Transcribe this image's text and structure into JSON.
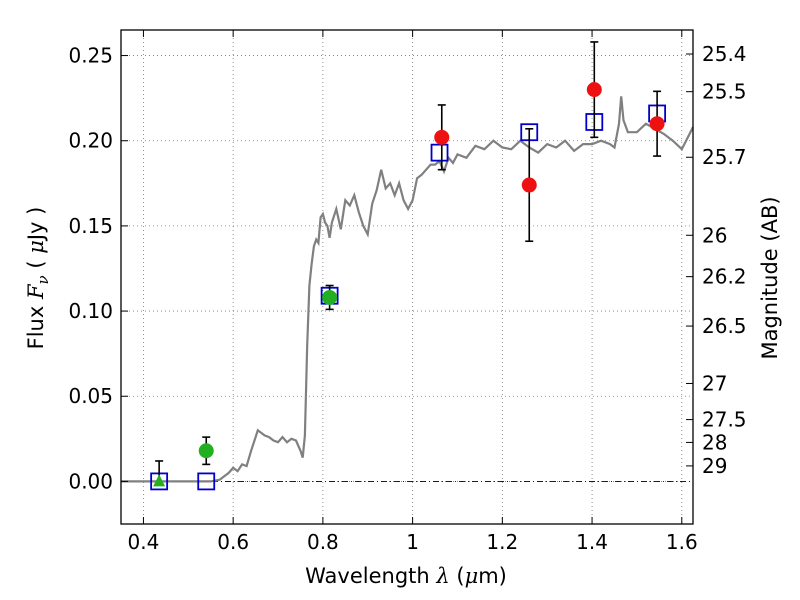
{
  "chart_data": {
    "type": "scatter",
    "xlabel": {
      "prefix": "Wavelength  ",
      "symbol": "λ",
      "suffix": " (",
      "unit_symbol": "μ",
      "unit": "m)"
    },
    "ylabel": {
      "prefix": "Flux  ",
      "symbol": "F",
      "subscript": "ν",
      "middle": "  ( ",
      "unit_symbol": "μ",
      "unit": "Jy )"
    },
    "y2label": "Magnitude (AB)",
    "xlim": [
      0.35,
      1.625
    ],
    "ylim": [
      -0.025,
      0.265
    ],
    "grid": true,
    "x_ticks": [
      {
        "value": 0.4,
        "label": "0.4"
      },
      {
        "value": 0.6,
        "label": "0.6"
      },
      {
        "value": 0.8,
        "label": "0.8"
      },
      {
        "value": 1.0,
        "label": "1"
      },
      {
        "value": 1.2,
        "label": "1.2"
      },
      {
        "value": 1.4,
        "label": "1.4"
      },
      {
        "value": 1.6,
        "label": "1.6"
      }
    ],
    "y_ticks": [
      {
        "value": 0.0,
        "label": "0.00"
      },
      {
        "value": 0.05,
        "label": "0.05"
      },
      {
        "value": 0.1,
        "label": "0.10"
      },
      {
        "value": 0.15,
        "label": "0.15"
      },
      {
        "value": 0.2,
        "label": "0.20"
      },
      {
        "value": 0.25,
        "label": "0.25"
      }
    ],
    "magnitude_ticks": [
      {
        "label": "25.4",
        "flux": 0.2509
      },
      {
        "label": "25.5",
        "flux": 0.2288
      },
      {
        "label": "25.7",
        "flux": 0.1903
      },
      {
        "label": "26",
        "flux": 0.1445
      },
      {
        "label": "26.2",
        "flux": 0.1202
      },
      {
        "label": "26.5",
        "flux": 0.0912
      },
      {
        "label": "27",
        "flux": 0.0575
      },
      {
        "label": "27.5",
        "flux": 0.0363
      },
      {
        "label": "28",
        "flux": 0.0229
      },
      {
        "label": "29",
        "flux": 0.0091
      }
    ],
    "series": [
      {
        "kind": "template_spectrum",
        "color": "#808080",
        "x": [
          0.35,
          0.5,
          0.55,
          0.57,
          0.58,
          0.59,
          0.6,
          0.61,
          0.62,
          0.63,
          0.64,
          0.65,
          0.655,
          0.66,
          0.67,
          0.68,
          0.69,
          0.7,
          0.71,
          0.72,
          0.73,
          0.74,
          0.75,
          0.755,
          0.76,
          0.765,
          0.77,
          0.775,
          0.78,
          0.785,
          0.79,
          0.795,
          0.8,
          0.805,
          0.81,
          0.815,
          0.82,
          0.83,
          0.84,
          0.85,
          0.86,
          0.87,
          0.88,
          0.89,
          0.9,
          0.91,
          0.92,
          0.93,
          0.94,
          0.95,
          0.96,
          0.97,
          0.98,
          0.99,
          1.0,
          1.01,
          1.02,
          1.03,
          1.04,
          1.05,
          1.06,
          1.07,
          1.08,
          1.09,
          1.1,
          1.12,
          1.14,
          1.16,
          1.18,
          1.2,
          1.22,
          1.24,
          1.26,
          1.28,
          1.3,
          1.32,
          1.34,
          1.36,
          1.38,
          1.4,
          1.42,
          1.44,
          1.45,
          1.46,
          1.465,
          1.47,
          1.48,
          1.5,
          1.52,
          1.54,
          1.56,
          1.58,
          1.6,
          1.625
        ],
        "y": [
          0.0,
          0.0,
          0.0,
          0.001,
          0.003,
          0.005,
          0.008,
          0.006,
          0.01,
          0.009,
          0.018,
          0.026,
          0.03,
          0.029,
          0.027,
          0.026,
          0.024,
          0.023,
          0.026,
          0.023,
          0.025,
          0.024,
          0.018,
          0.014,
          0.027,
          0.08,
          0.115,
          0.128,
          0.138,
          0.142,
          0.14,
          0.155,
          0.157,
          0.152,
          0.15,
          0.143,
          0.152,
          0.16,
          0.148,
          0.165,
          0.162,
          0.168,
          0.158,
          0.15,
          0.145,
          0.163,
          0.171,
          0.183,
          0.172,
          0.175,
          0.168,
          0.175,
          0.165,
          0.16,
          0.165,
          0.178,
          0.18,
          0.183,
          0.186,
          0.186,
          0.188,
          0.182,
          0.19,
          0.187,
          0.192,
          0.19,
          0.197,
          0.195,
          0.2,
          0.196,
          0.195,
          0.2,
          0.196,
          0.193,
          0.198,
          0.196,
          0.2,
          0.194,
          0.198,
          0.198,
          0.2,
          0.198,
          0.196,
          0.21,
          0.226,
          0.212,
          0.205,
          0.205,
          0.21,
          0.207,
          0.204,
          0.2,
          0.195,
          0.208
        ]
      },
      {
        "kind": "model_squares",
        "color": "#0000cc",
        "points": [
          {
            "x": 0.435,
            "y": 0.0
          },
          {
            "x": 0.54,
            "y": 0.0
          },
          {
            "x": 0.815,
            "y": 0.109
          },
          {
            "x": 1.06,
            "y": 0.193
          },
          {
            "x": 1.26,
            "y": 0.205
          },
          {
            "x": 1.405,
            "y": 0.211
          },
          {
            "x": 1.545,
            "y": 0.216
          }
        ]
      },
      {
        "kind": "observed_green",
        "color": "#22b022",
        "points": [
          {
            "x": 0.435,
            "y": 0.0,
            "marker": "triangle",
            "err": [
              0.0,
              0.012
            ]
          },
          {
            "x": 0.54,
            "y": 0.018,
            "marker": "circle",
            "err": [
              0.008,
              0.008
            ]
          },
          {
            "x": 0.815,
            "y": 0.108,
            "marker": "circle",
            "err": [
              0.007,
              0.007
            ]
          }
        ]
      },
      {
        "kind": "observed_red",
        "color": "#ee1111",
        "points": [
          {
            "x": 1.065,
            "y": 0.202,
            "marker": "circle",
            "err": [
              0.019,
              0.019
            ]
          },
          {
            "x": 1.26,
            "y": 0.174,
            "marker": "circle",
            "err": [
              0.033,
              0.033
            ]
          },
          {
            "x": 1.405,
            "y": 0.23,
            "marker": "circle",
            "err": [
              0.028,
              0.028
            ]
          },
          {
            "x": 1.545,
            "y": 0.21,
            "marker": "circle",
            "err": [
              0.019,
              0.019
            ]
          }
        ]
      }
    ]
  }
}
